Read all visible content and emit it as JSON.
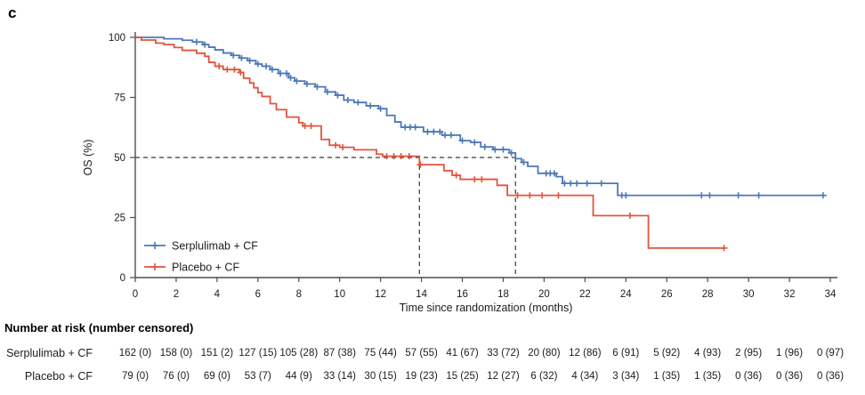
{
  "panel_label": "c",
  "colors": {
    "serplulimab": "#4c78b8",
    "placebo": "#e2543c",
    "reference_dash": "#3a3a3a",
    "axis": "#4d4d4d",
    "text": "#1c1c1c"
  },
  "chart_data": {
    "type": "line",
    "subtype": "kaplan-meier-step",
    "title": "",
    "xlabel": "Time since randomization (months)",
    "ylabel": "OS (%)",
    "xlim": [
      0,
      34
    ],
    "ylim": [
      0,
      100
    ],
    "xticks": [
      0,
      2,
      4,
      6,
      8,
      10,
      12,
      14,
      16,
      18,
      20,
      22,
      24,
      26,
      28,
      30,
      32,
      34
    ],
    "yticks": [
      0,
      25,
      50,
      75,
      100
    ],
    "grid": false,
    "legend_position": "inside-bottom-left",
    "median_reference": {
      "y_percent": 50,
      "months": [
        13.9,
        18.6
      ]
    },
    "series": [
      {
        "name": "Serplulimab + CF",
        "color": "#4c78b8",
        "points": [
          [
            0,
            100
          ],
          [
            1.4,
            99.4
          ],
          [
            2.3,
            98.8
          ],
          [
            2.8,
            98.1
          ],
          [
            3.3,
            97.0
          ],
          [
            3.6,
            95.9
          ],
          [
            3.9,
            94.8
          ],
          [
            4.3,
            93.5
          ],
          [
            4.7,
            92.5
          ],
          [
            5.1,
            91.4
          ],
          [
            5.5,
            90.3
          ],
          [
            5.9,
            88.9
          ],
          [
            6.2,
            88.0
          ],
          [
            6.6,
            86.6
          ],
          [
            7.0,
            85.0
          ],
          [
            7.5,
            83.2
          ],
          [
            7.8,
            81.8
          ],
          [
            8.3,
            80.6
          ],
          [
            8.8,
            79.4
          ],
          [
            9.3,
            77.3
          ],
          [
            9.8,
            75.9
          ],
          [
            10.2,
            73.9
          ],
          [
            10.7,
            72.9
          ],
          [
            11.3,
            71.5
          ],
          [
            11.9,
            70.3
          ],
          [
            12.3,
            67.5
          ],
          [
            12.7,
            64.8
          ],
          [
            13.0,
            62.6
          ],
          [
            14.1,
            60.7
          ],
          [
            15.0,
            59.3
          ],
          [
            15.9,
            57.0
          ],
          [
            16.4,
            56.3
          ],
          [
            16.9,
            54.4
          ],
          [
            17.5,
            53.3
          ],
          [
            18.3,
            51.9
          ],
          [
            18.6,
            49.5
          ],
          [
            18.9,
            48.0
          ],
          [
            19.2,
            46.3
          ],
          [
            19.7,
            43.4
          ],
          [
            20.6,
            42.0
          ],
          [
            20.9,
            39.2
          ],
          [
            23.6,
            34.2
          ]
        ],
        "censor_months": [
          3.0,
          3.4,
          4.8,
          5.2,
          5.6,
          6.0,
          6.4,
          6.7,
          7.1,
          7.4,
          7.6,
          7.9,
          8.4,
          8.9,
          9.4,
          9.9,
          10.4,
          10.9,
          11.5,
          12.0,
          13.2,
          13.45,
          13.7,
          14.3,
          14.6,
          14.9,
          15.15,
          15.45,
          16.0,
          16.6,
          17.1,
          17.6,
          18.0,
          18.4,
          19.0,
          20.1,
          20.3,
          20.5,
          21.0,
          21.3,
          21.6,
          22.1,
          22.8,
          23.8,
          24.0,
          27.7,
          28.1,
          29.5,
          30.5,
          33.65
        ],
        "end_month": 33.65
      },
      {
        "name": "Placebo + CF",
        "color": "#e2543c",
        "points": [
          [
            0,
            100
          ],
          [
            0.3,
            98.9
          ],
          [
            1.0,
            97.6
          ],
          [
            1.4,
            97.0
          ],
          [
            1.9,
            95.8
          ],
          [
            2.3,
            94.6
          ],
          [
            3.0,
            93.4
          ],
          [
            3.4,
            92.1
          ],
          [
            3.6,
            89.6
          ],
          [
            3.9,
            88.0
          ],
          [
            4.3,
            86.6
          ],
          [
            5.1,
            85.4
          ],
          [
            5.3,
            83.0
          ],
          [
            5.6,
            81.0
          ],
          [
            5.8,
            79.0
          ],
          [
            6.0,
            77.0
          ],
          [
            6.2,
            75.4
          ],
          [
            6.6,
            72.4
          ],
          [
            6.9,
            69.9
          ],
          [
            7.4,
            66.8
          ],
          [
            8.0,
            64.5
          ],
          [
            8.2,
            63.1
          ],
          [
            9.1,
            57.5
          ],
          [
            9.5,
            55.1
          ],
          [
            10.0,
            54.2
          ],
          [
            10.7,
            53.2
          ],
          [
            11.8,
            51.4
          ],
          [
            12.1,
            50.5
          ],
          [
            13.9,
            47.0
          ],
          [
            15.1,
            44.5
          ],
          [
            15.5,
            42.6
          ],
          [
            15.9,
            40.9
          ],
          [
            17.7,
            38.4
          ],
          [
            18.2,
            34.2
          ],
          [
            22.4,
            25.8
          ],
          [
            25.1,
            12.3
          ]
        ],
        "censor_months": [
          4.1,
          4.5,
          4.85,
          5.15,
          8.3,
          8.6,
          9.8,
          10.15,
          12.3,
          12.65,
          13.0,
          13.4,
          13.95,
          15.7,
          16.6,
          16.95,
          18.7,
          19.3,
          19.9,
          20.7,
          24.2,
          28.8
        ],
        "end_month": 28.8
      }
    ]
  },
  "risk_table": {
    "title": "Number at risk (number censored)",
    "rows": [
      {
        "label": "Serplulimab + CF",
        "values": [
          "162 (0)",
          "158 (0)",
          "151 (2)",
          "127 (15)",
          "105 (28)",
          "87 (38)",
          "75 (44)",
          "57 (55)",
          "41 (67)",
          "33 (72)",
          "20 (80)",
          "12 (86)",
          "6 (91)",
          "5 (92)",
          "4 (93)",
          "2 (95)",
          "1 (96)",
          "0 (97)"
        ]
      },
      {
        "label": "Placebo + CF",
        "values": [
          "79 (0)",
          "76 (0)",
          "69 (0)",
          "53 (7)",
          "44 (9)",
          "33 (14)",
          "30 (15)",
          "19 (23)",
          "15 (25)",
          "12 (27)",
          "6 (32)",
          "4 (34)",
          "3 (34)",
          "1 (35)",
          "1 (35)",
          "0 (36)",
          "0 (36)",
          "0 (36)"
        ]
      }
    ]
  }
}
